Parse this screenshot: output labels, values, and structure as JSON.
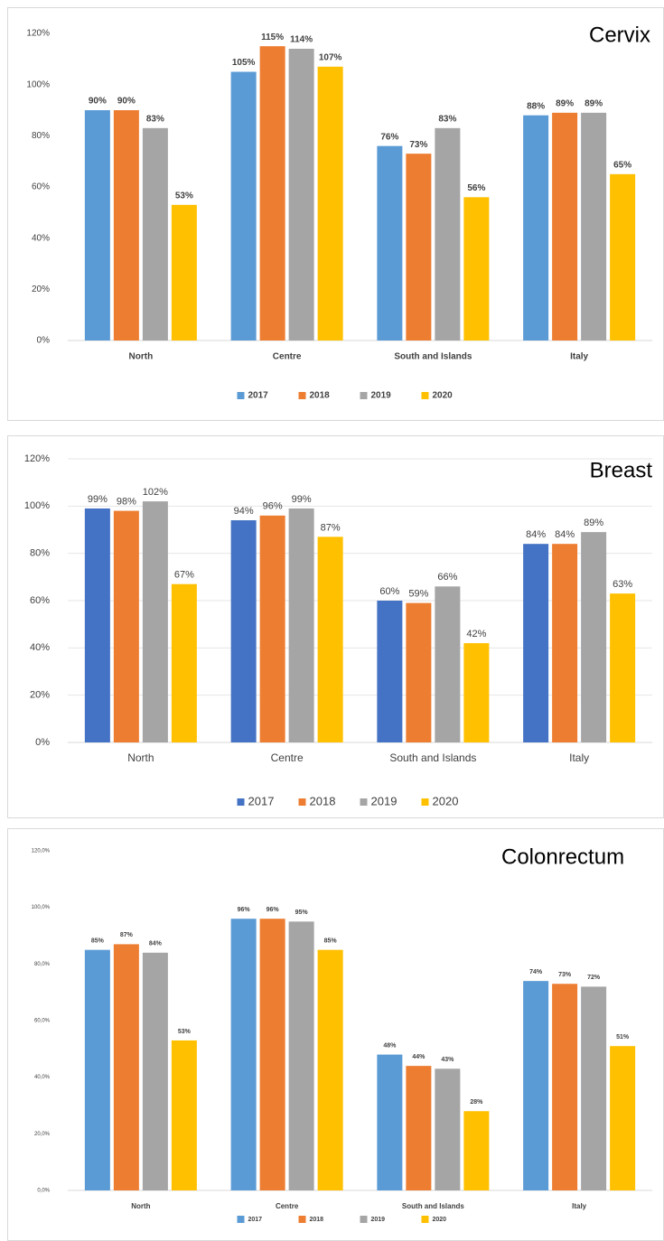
{
  "chart_data": [
    {
      "type": "bar",
      "title": "Cervix",
      "categories": [
        "North",
        "Centre",
        "South and Islands",
        "Italy"
      ],
      "series": [
        {
          "name": "2017",
          "color": "#5b9bd5",
          "values": [
            90,
            105,
            76,
            88
          ],
          "value_labels": [
            "90%",
            "105%",
            "76%",
            "88%"
          ]
        },
        {
          "name": "2018",
          "color": "#ed7d31",
          "values": [
            90,
            115,
            73,
            89
          ],
          "value_labels": [
            "90%",
            "115%",
            "73%",
            "89%"
          ]
        },
        {
          "name": "2019",
          "color": "#a5a5a5",
          "values": [
            83,
            114,
            83,
            89
          ],
          "value_labels": [
            "83%",
            "114%",
            "83%",
            "89%"
          ]
        },
        {
          "name": "2020",
          "color": "#ffc000",
          "values": [
            53,
            107,
            56,
            65
          ],
          "value_labels": [
            "53%",
            "107%",
            "56%",
            "65%"
          ]
        }
      ],
      "ylim": [
        0,
        120
      ],
      "yticks": [
        {
          "value": 0,
          "label": "0%"
        },
        {
          "value": 20,
          "label": "20%"
        },
        {
          "value": 40,
          "label": "40%"
        },
        {
          "value": 60,
          "label": "60%"
        },
        {
          "value": 80,
          "label": "80%"
        },
        {
          "value": 100,
          "label": "100%"
        },
        {
          "value": 120,
          "label": "120%"
        }
      ],
      "grid": false,
      "legend": "bottom"
    },
    {
      "type": "bar",
      "title": "Breast",
      "categories": [
        "North",
        "Centre",
        "South and Islands",
        "Italy"
      ],
      "series": [
        {
          "name": "2017",
          "color": "#4472c4",
          "values": [
            99,
            94,
            60,
            84
          ],
          "value_labels": [
            "99%",
            "94%",
            "60%",
            "84%"
          ]
        },
        {
          "name": "2018",
          "color": "#ed7d31",
          "values": [
            98,
            96,
            59,
            84
          ],
          "value_labels": [
            "98%",
            "96%",
            "59%",
            "84%"
          ]
        },
        {
          "name": "2019",
          "color": "#a5a5a5",
          "values": [
            102,
            99,
            66,
            89
          ],
          "value_labels": [
            "102%",
            "99%",
            "66%",
            "89%"
          ]
        },
        {
          "name": "2020",
          "color": "#ffc000",
          "values": [
            67,
            87,
            42,
            63
          ],
          "value_labels": [
            "67%",
            "87%",
            "42%",
            "63%"
          ]
        }
      ],
      "ylim": [
        0,
        120
      ],
      "yticks": [
        {
          "value": 0,
          "label": "0%"
        },
        {
          "value": 20,
          "label": "20%"
        },
        {
          "value": 40,
          "label": "40%"
        },
        {
          "value": 60,
          "label": "60%"
        },
        {
          "value": 80,
          "label": "80%"
        },
        {
          "value": 100,
          "label": "100%"
        },
        {
          "value": 120,
          "label": "120%"
        }
      ],
      "grid": true,
      "legend": "bottom"
    },
    {
      "type": "bar",
      "title": "Colonrectum",
      "categories": [
        "North",
        "Centre",
        "South and Islands",
        "Italy"
      ],
      "series": [
        {
          "name": "2017",
          "color": "#5b9bd5",
          "values": [
            85,
            96,
            48,
            74
          ],
          "value_labels": [
            "85%",
            "96%",
            "48%",
            "74%"
          ]
        },
        {
          "name": "2018",
          "color": "#ed7d31",
          "values": [
            87,
            96,
            44,
            73
          ],
          "value_labels": [
            "87%",
            "96%",
            "44%",
            "73%"
          ]
        },
        {
          "name": "2019",
          "color": "#a5a5a5",
          "values": [
            84,
            95,
            43,
            72
          ],
          "value_labels": [
            "84%",
            "95%",
            "43%",
            "72%"
          ]
        },
        {
          "name": "2020",
          "color": "#ffc000",
          "values": [
            53,
            85,
            28,
            51
          ],
          "value_labels": [
            "53%",
            "85%",
            "28%",
            "51%"
          ]
        }
      ],
      "ylim": [
        0,
        120
      ],
      "yticks": [
        {
          "value": 0,
          "label": "0,0%"
        },
        {
          "value": 20,
          "label": "20,0%"
        },
        {
          "value": 40,
          "label": "40,0%"
        },
        {
          "value": 60,
          "label": "60,0%"
        },
        {
          "value": 80,
          "label": "80,0%"
        },
        {
          "value": 100,
          "label": "100,0%"
        },
        {
          "value": 120,
          "label": "120,0%"
        }
      ],
      "grid": false,
      "legend": "bottom"
    }
  ]
}
